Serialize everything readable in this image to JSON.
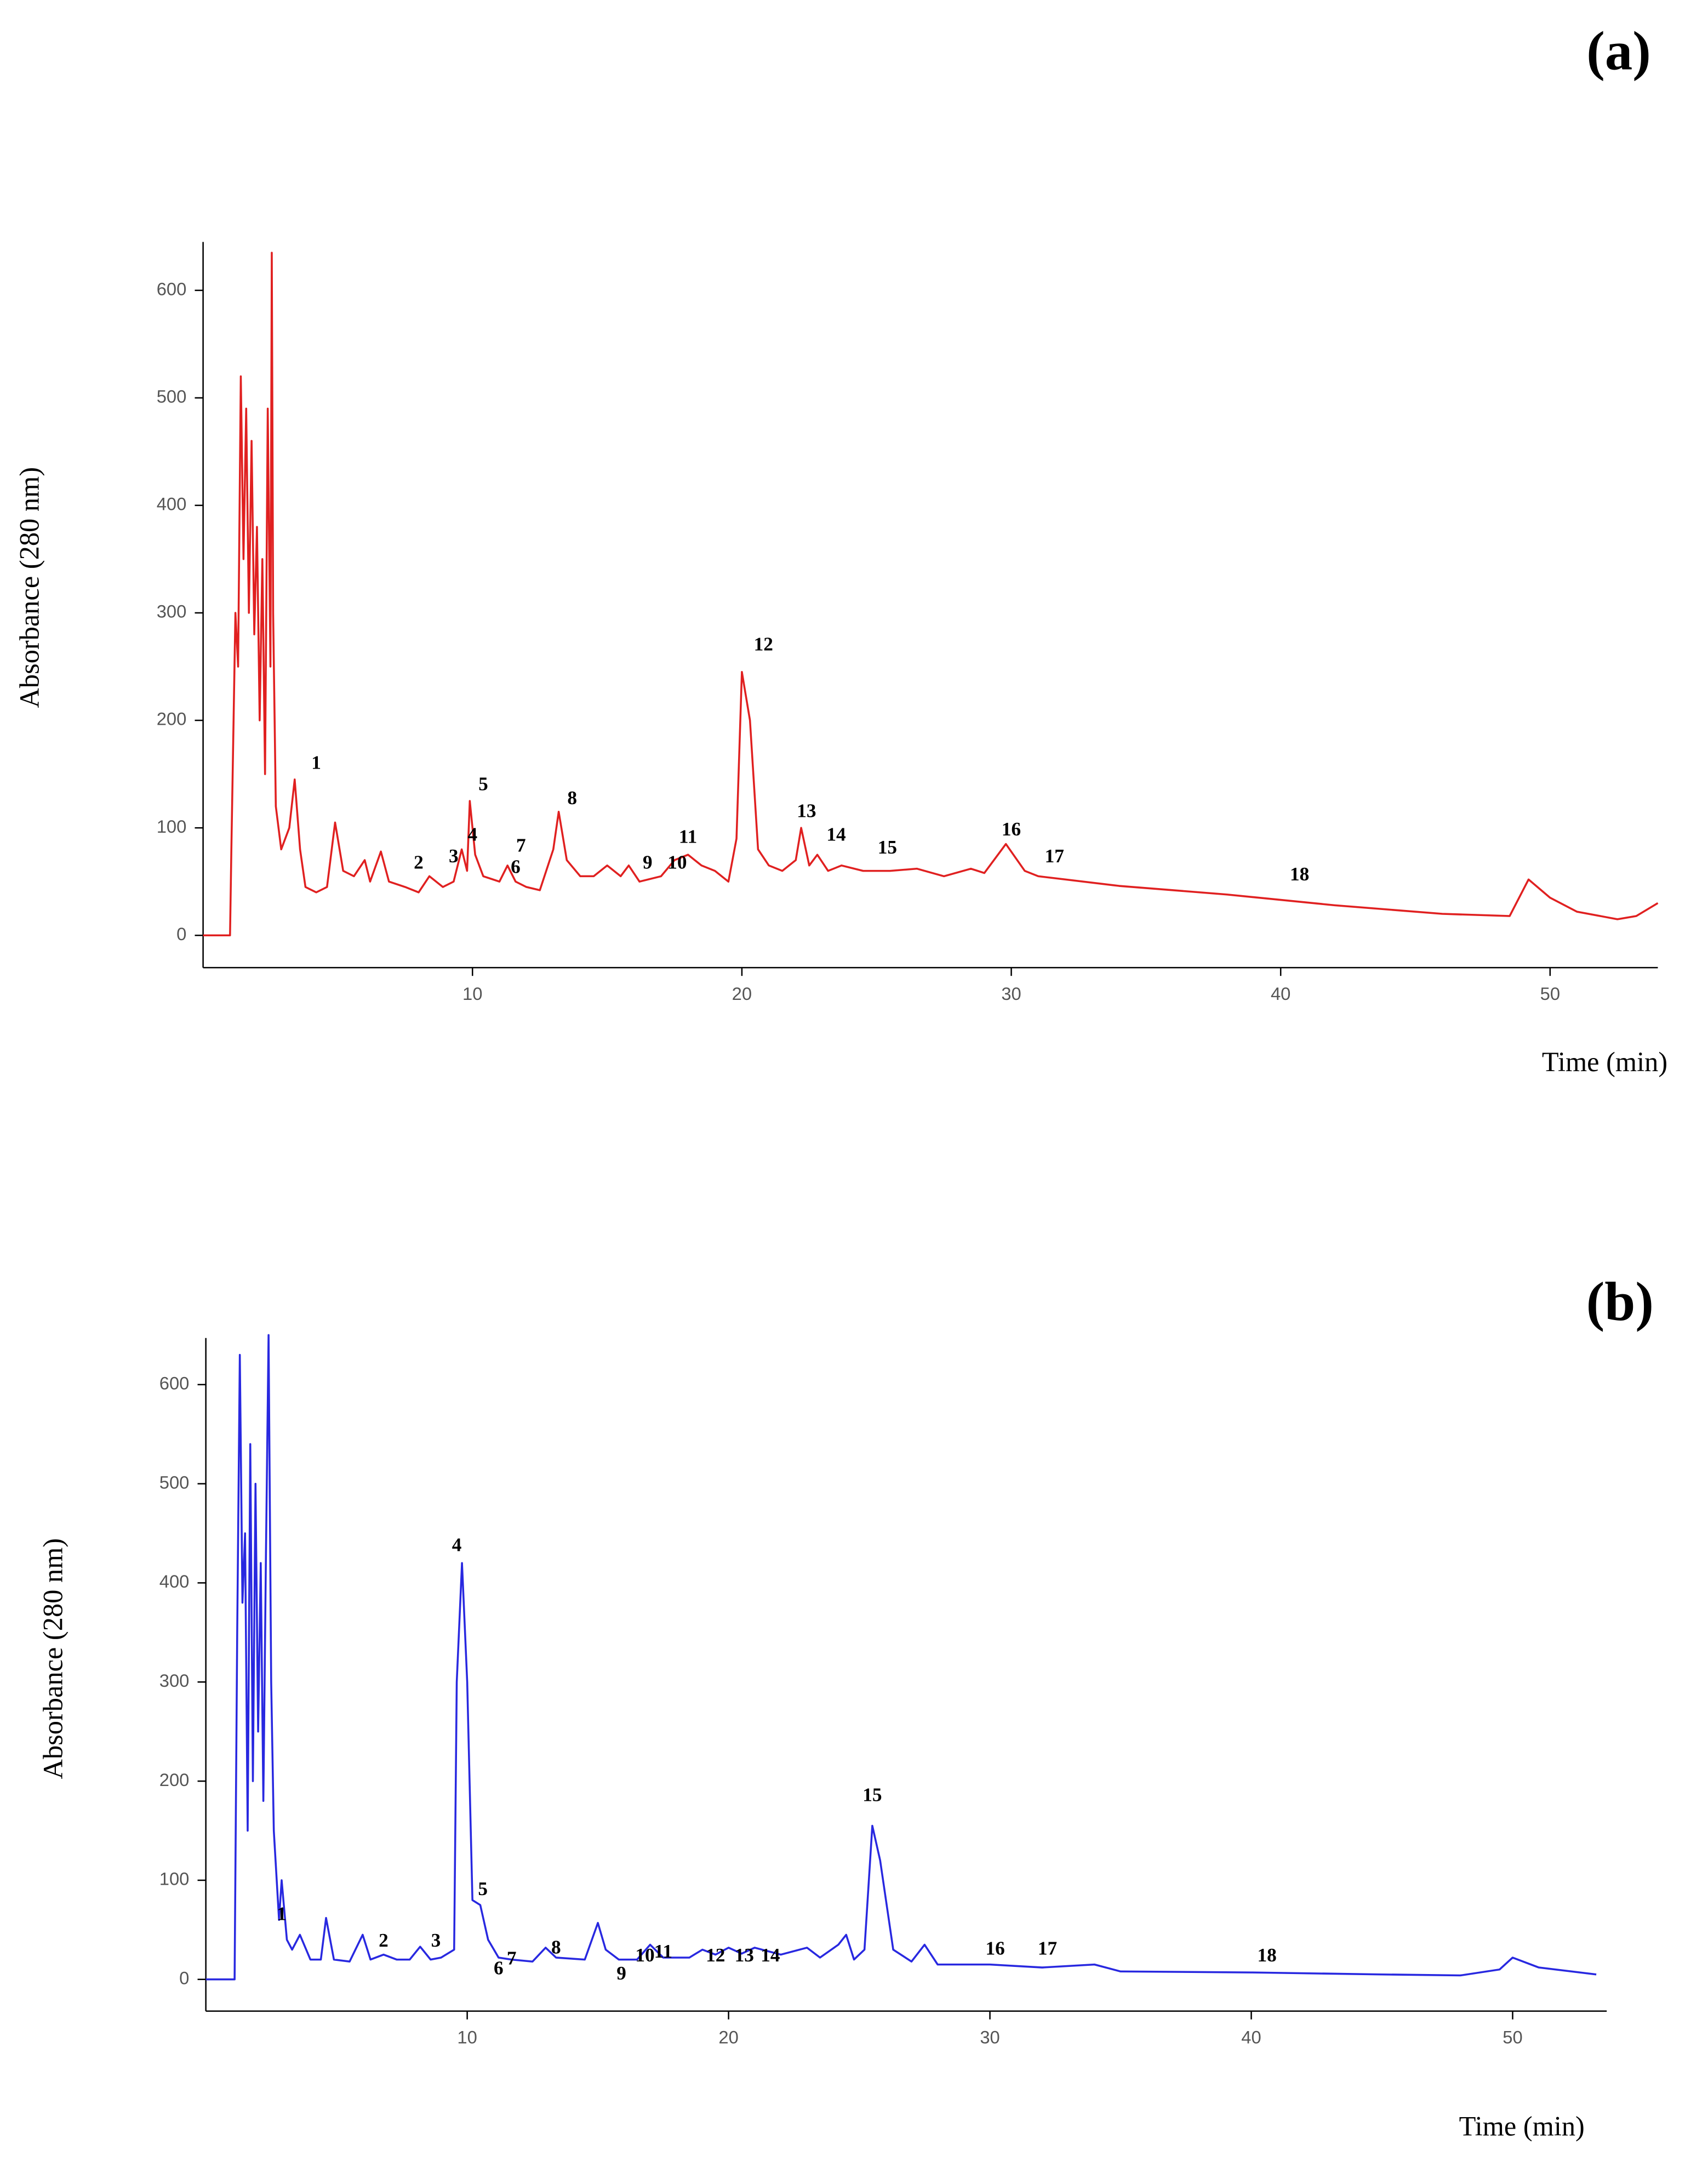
{
  "chart_data": [
    {
      "type": "line",
      "title": "(a)",
      "xlabel": "Time (min)",
      "ylabel": "Absorbance (280 nm)",
      "xlim": [
        0,
        54
      ],
      "ylim": [
        -30,
        645
      ],
      "xticks": [
        10,
        20,
        30,
        40,
        50
      ],
      "yticks": [
        0,
        100,
        200,
        300,
        400,
        500,
        600
      ],
      "series": [
        {
          "color": "#e02020",
          "x": [
            0,
            1,
            1.05,
            1.2,
            1.3,
            1.4,
            1.5,
            1.6,
            1.7,
            1.8,
            1.9,
            2.0,
            2.1,
            2.2,
            2.3,
            2.4,
            2.5,
            2.55,
            2.6,
            2.7,
            2.9,
            3.2,
            3.4,
            3.6,
            3.8,
            4.2,
            4.6,
            4.9,
            5.2,
            5.6,
            6.0,
            6.2,
            6.6,
            6.9,
            7.5,
            8.0,
            8.4,
            8.9,
            9.3,
            9.6,
            9.8,
            9.9,
            10.1,
            10.4,
            11.0,
            11.3,
            11.6,
            12.0,
            12.5,
            13.0,
            13.2,
            13.5,
            14.0,
            14.5,
            15.0,
            15.5,
            15.8,
            16.2,
            17.0,
            17.5,
            18.0,
            18.5,
            19.0,
            19.5,
            19.8,
            20.0,
            20.3,
            20.6,
            21.0,
            21.5,
            22.0,
            22.2,
            22.5,
            22.8,
            23.2,
            23.7,
            24.5,
            25.5,
            26.5,
            27.5,
            28.5,
            29.0,
            29.8,
            30.5,
            31.0,
            32.0,
            34,
            38,
            42,
            46,
            48.5,
            49.2,
            50,
            51,
            52.5,
            53.2,
            54
          ],
          "values": [
            0,
            0,
            80,
            300,
            250,
            520,
            350,
            490,
            300,
            460,
            280,
            380,
            200,
            350,
            150,
            490,
            250,
            635,
            300,
            120,
            80,
            100,
            145,
            80,
            45,
            40,
            45,
            105,
            60,
            55,
            70,
            50,
            78,
            50,
            45,
            40,
            55,
            45,
            50,
            80,
            60,
            125,
            75,
            55,
            50,
            65,
            50,
            45,
            42,
            80,
            115,
            70,
            55,
            55,
            65,
            55,
            65,
            50,
            55,
            70,
            75,
            65,
            60,
            50,
            90,
            245,
            200,
            80,
            65,
            60,
            70,
            100,
            65,
            75,
            60,
            65,
            60,
            60,
            62,
            55,
            62,
            58,
            85,
            60,
            55,
            52,
            46,
            38,
            28,
            20,
            18,
            52,
            35,
            22,
            15,
            18,
            30
          ]
        }
      ],
      "annotations": [
        {
          "text": "1",
          "x": 4.2,
          "y": 155
        },
        {
          "text": "2",
          "x": 8.0,
          "y": 62
        },
        {
          "text": "3",
          "x": 9.3,
          "y": 68
        },
        {
          "text": "4",
          "x": 10.0,
          "y": 88
        },
        {
          "text": "5",
          "x": 10.4,
          "y": 135
        },
        {
          "text": "6",
          "x": 11.6,
          "y": 58
        },
        {
          "text": "7",
          "x": 11.8,
          "y": 78
        },
        {
          "text": "8",
          "x": 13.7,
          "y": 122
        },
        {
          "text": "9",
          "x": 16.5,
          "y": 62
        },
        {
          "text": "10",
          "x": 17.6,
          "y": 62
        },
        {
          "text": "11",
          "x": 18.0,
          "y": 86
        },
        {
          "text": "12",
          "x": 20.8,
          "y": 265
        },
        {
          "text": "13",
          "x": 22.4,
          "y": 110
        },
        {
          "text": "14",
          "x": 23.5,
          "y": 88
        },
        {
          "text": "15",
          "x": 25.4,
          "y": 76
        },
        {
          "text": "16",
          "x": 30.0,
          "y": 93
        },
        {
          "text": "17",
          "x": 31.6,
          "y": 68
        },
        {
          "text": "18",
          "x": 40.7,
          "y": 51
        }
      ]
    },
    {
      "type": "line",
      "title": "(b)",
      "xlabel": "Time (min)",
      "ylabel": "Absorbance (280 nm)",
      "xlim": [
        0,
        53.6
      ],
      "ylim": [
        -32,
        647
      ],
      "xticks": [
        10,
        20,
        30,
        40,
        50
      ],
      "yticks": [
        0,
        100,
        200,
        300,
        400,
        500,
        600
      ],
      "series": [
        {
          "color": "#2828e0",
          "x": [
            0,
            1.1,
            1.2,
            1.3,
            1.4,
            1.5,
            1.6,
            1.7,
            1.8,
            1.9,
            2.0,
            2.1,
            2.2,
            2.3,
            2.4,
            2.5,
            2.6,
            2.8,
            2.9,
            3.1,
            3.3,
            3.6,
            4.0,
            4.4,
            4.6,
            4.9,
            5.5,
            6.0,
            6.3,
            6.8,
            7.3,
            7.8,
            8.2,
            8.6,
            9.0,
            9.5,
            9.6,
            9.8,
            10.0,
            10.2,
            10.5,
            10.8,
            11.2,
            11.7,
            12.5,
            13.0,
            13.4,
            14.5,
            15.0,
            15.3,
            15.8,
            16.5,
            17.0,
            17.5,
            18.5,
            19.0,
            19.5,
            20.0,
            20.5,
            21.0,
            22.0,
            23.0,
            23.5,
            24.2,
            24.5,
            24.8,
            25.2,
            25.5,
            25.8,
            26.3,
            27.0,
            27.5,
            28.0,
            29.0,
            30.0,
            32.0,
            34.0,
            35.0,
            40,
            45,
            48,
            49.5,
            50,
            51,
            53.2
          ],
          "values": [
            0,
            0,
            350,
            630,
            380,
            450,
            150,
            540,
            200,
            500,
            250,
            420,
            180,
            430,
            650,
            300,
            150,
            60,
            100,
            40,
            30,
            45,
            20,
            20,
            62,
            20,
            18,
            45,
            20,
            25,
            20,
            20,
            33,
            20,
            22,
            30,
            300,
            420,
            300,
            80,
            75,
            40,
            22,
            20,
            18,
            32,
            22,
            20,
            57,
            30,
            20,
            20,
            35,
            22,
            22,
            30,
            25,
            32,
            26,
            32,
            25,
            32,
            22,
            35,
            45,
            20,
            30,
            155,
            120,
            30,
            18,
            35,
            15,
            15,
            15,
            12,
            15,
            8,
            7,
            5,
            4,
            10,
            22,
            12,
            5
          ]
        }
      ],
      "annotations": [
        {
          "text": "1",
          "x": 2.9,
          "y": 60
        },
        {
          "text": "2",
          "x": 6.8,
          "y": 33
        },
        {
          "text": "3",
          "x": 8.8,
          "y": 33
        },
        {
          "text": "4",
          "x": 9.6,
          "y": 432
        },
        {
          "text": "5",
          "x": 10.6,
          "y": 85
        },
        {
          "text": "6",
          "x": 11.2,
          "y": 5
        },
        {
          "text": "7",
          "x": 11.7,
          "y": 15
        },
        {
          "text": "8",
          "x": 13.4,
          "y": 26
        },
        {
          "text": "9",
          "x": 15.9,
          "y": 0
        },
        {
          "text": "10",
          "x": 16.8,
          "y": 18
        },
        {
          "text": "11",
          "x": 17.5,
          "y": 22
        },
        {
          "text": "12",
          "x": 19.5,
          "y": 18
        },
        {
          "text": "13",
          "x": 20.6,
          "y": 18
        },
        {
          "text": "14",
          "x": 21.6,
          "y": 18
        },
        {
          "text": "15",
          "x": 25.5,
          "y": 180
        },
        {
          "text": "16",
          "x": 30.2,
          "y": 25
        },
        {
          "text": "17",
          "x": 32.2,
          "y": 25
        },
        {
          "text": "18",
          "x": 40.6,
          "y": 18
        }
      ]
    }
  ]
}
